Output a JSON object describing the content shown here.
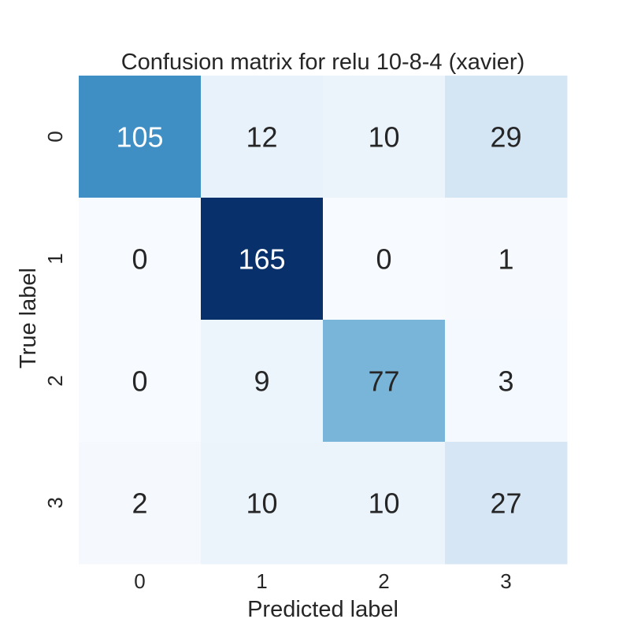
{
  "chart_data": {
    "type": "heatmap",
    "title": "Confusion matrix for relu 10-8-4 (xavier)",
    "xlabel": "Predicted label",
    "ylabel": "True label",
    "x_categories": [
      "0",
      "1",
      "2",
      "3"
    ],
    "y_categories": [
      "0",
      "1",
      "2",
      "3"
    ],
    "values": [
      [
        105,
        12,
        10,
        29
      ],
      [
        0,
        165,
        0,
        1
      ],
      [
        0,
        9,
        77,
        3
      ],
      [
        2,
        10,
        10,
        27
      ]
    ],
    "colormap": "Blues",
    "colorbar": false,
    "grid": false
  }
}
